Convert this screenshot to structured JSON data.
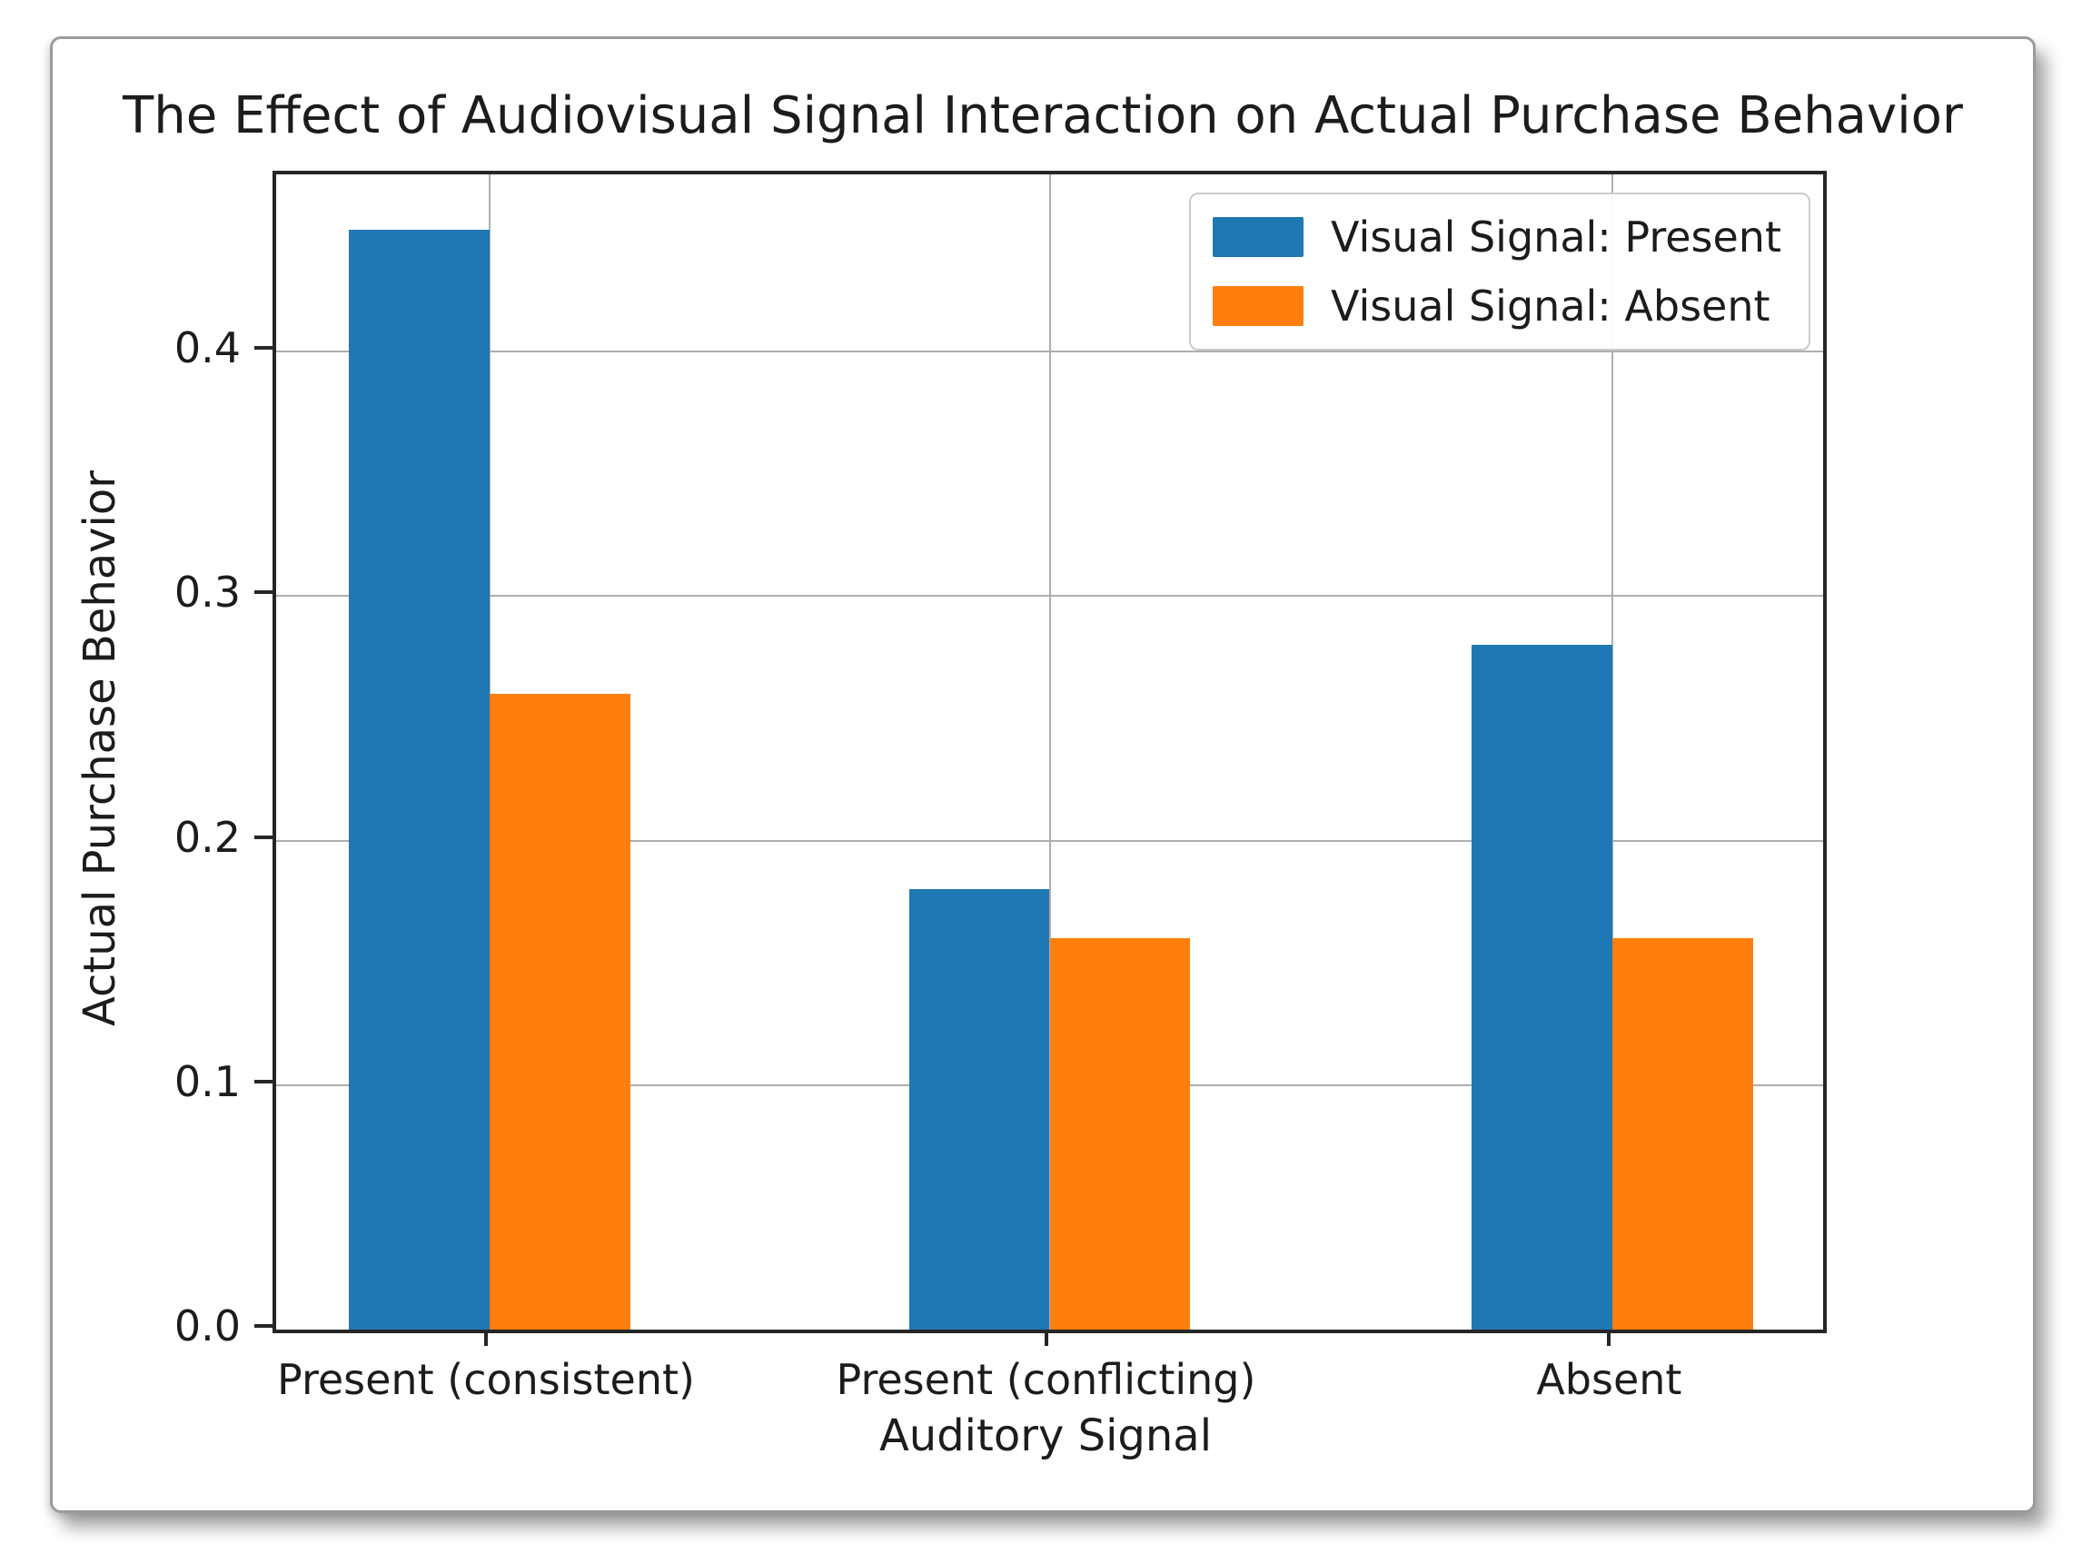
{
  "chart_data": {
    "type": "bar",
    "title": "The Effect of Audiovisual Signal Interaction on Actual Purchase Behavior",
    "xlabel": "Auditory Signal",
    "ylabel": "Actual Purchase Behavior",
    "categories": [
      "Present (consistent)",
      "Present (conflicting)",
      "Absent"
    ],
    "series": [
      {
        "name": "Visual Signal: Present",
        "color": "#1f77b4",
        "values": [
          0.45,
          0.18,
          0.28
        ]
      },
      {
        "name": "Visual Signal: Absent",
        "color": "#ff7f0e",
        "values": [
          0.26,
          0.16,
          0.16
        ]
      }
    ],
    "ylim": [
      0,
      0.4725
    ],
    "yticks": [
      0.0,
      0.1,
      0.2,
      0.3,
      0.4
    ],
    "ytick_labels": [
      "0.0",
      "0.1",
      "0.2",
      "0.3",
      "0.4"
    ],
    "grid": true,
    "grid_axes": "both",
    "legend_position": "upper right",
    "colors": {
      "grid": "#aeaeae",
      "spine": "#262626",
      "text": "#1c1c1c",
      "background": "#ffffff"
    }
  }
}
